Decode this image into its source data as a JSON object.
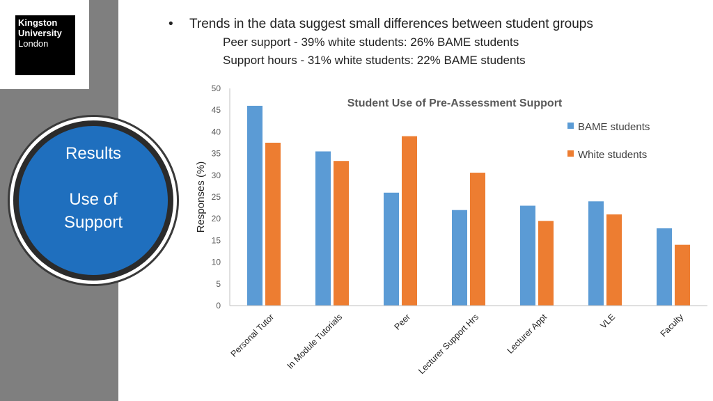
{
  "logo": {
    "line1": "Kingston",
    "line2": "University",
    "line3": "London"
  },
  "badge": {
    "title": "Results",
    "subtitle_line1": "Use of",
    "subtitle_line2": "Support"
  },
  "bullets": {
    "main": "Trends in the data suggest small differences between student groups",
    "sub": [
      "Peer support - 39% white students: 26% BAME students",
      "Support hours - 31% white students: 22% BAME students"
    ]
  },
  "chart_data": {
    "type": "bar",
    "title": "Student Use of Pre-Assessment Support",
    "xlabel": "",
    "ylabel": "Responses (%)",
    "ylim": [
      0,
      50
    ],
    "yticks": [
      0,
      5,
      10,
      15,
      20,
      25,
      30,
      35,
      40,
      45,
      50
    ],
    "categories": [
      "Personal Tutor",
      "In Module Tutorials",
      "Peer",
      "Lecturer Support Hrs",
      "Lecturer Appt",
      "VLE",
      "Faculty"
    ],
    "series": [
      {
        "name": "BAME students",
        "color": "#5b9bd5",
        "values": [
          46,
          35.5,
          26,
          22,
          23,
          24,
          17.8
        ]
      },
      {
        "name": "White students",
        "color": "#ed7d31",
        "values": [
          37.5,
          33.3,
          39,
          30.6,
          19.5,
          21,
          14
        ]
      }
    ],
    "legend_position": "top-right",
    "grid": false
  }
}
